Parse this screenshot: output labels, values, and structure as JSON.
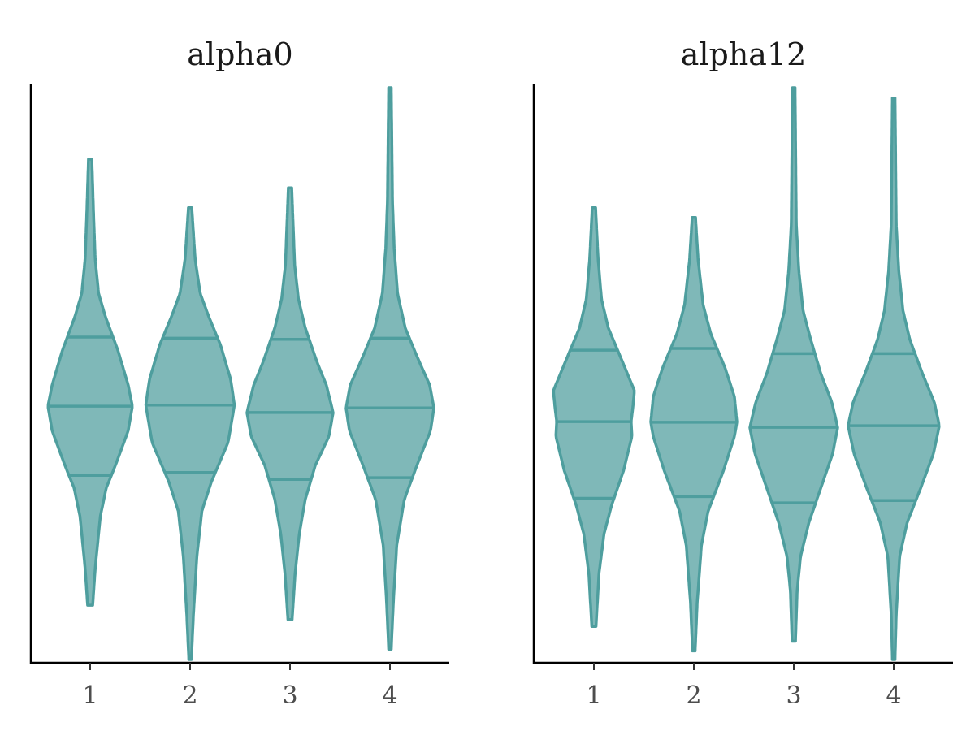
{
  "colors": {
    "fill": "#7fb8b8",
    "stroke": "#4e9e9e",
    "axis": "#000000"
  },
  "chart_data": [
    {
      "type": "violin",
      "title": "alpha0",
      "xlabel": "",
      "ylabel": "",
      "categories": [
        "1",
        "2",
        "3",
        "4"
      ],
      "ylim": [
        0,
        1
      ],
      "violins": [
        {
          "category": "1",
          "min": 0.095,
          "max": 0.875,
          "q25": 0.322,
          "median": 0.443,
          "q75": 0.564,
          "profile": [
            [
              0.095,
              0.006
            ],
            [
              0.16,
              0.012
            ],
            [
              0.25,
              0.024
            ],
            [
              0.3,
              0.038
            ],
            [
              0.34,
              0.06
            ],
            [
              0.4,
              0.09
            ],
            [
              0.443,
              0.1
            ],
            [
              0.48,
              0.09
            ],
            [
              0.54,
              0.066
            ],
            [
              0.6,
              0.036
            ],
            [
              0.64,
              0.02
            ],
            [
              0.7,
              0.012
            ],
            [
              0.78,
              0.008
            ],
            [
              0.875,
              0.004
            ]
          ]
        },
        {
          "category": "2",
          "min": 0.0,
          "max": 0.79,
          "q25": 0.327,
          "median": 0.445,
          "q75": 0.562,
          "profile": [
            [
              0.0,
              0.003
            ],
            [
              0.08,
              0.008
            ],
            [
              0.18,
              0.016
            ],
            [
              0.26,
              0.028
            ],
            [
              0.31,
              0.05
            ],
            [
              0.38,
              0.09
            ],
            [
              0.445,
              0.105
            ],
            [
              0.49,
              0.096
            ],
            [
              0.55,
              0.072
            ],
            [
              0.6,
              0.044
            ],
            [
              0.64,
              0.024
            ],
            [
              0.7,
              0.012
            ],
            [
              0.79,
              0.004
            ]
          ]
        },
        {
          "category": "3",
          "min": 0.07,
          "max": 0.825,
          "q25": 0.315,
          "median": 0.432,
          "q75": 0.56,
          "profile": [
            [
              0.07,
              0.005
            ],
            [
              0.15,
              0.012
            ],
            [
              0.22,
              0.022
            ],
            [
              0.28,
              0.036
            ],
            [
              0.34,
              0.06
            ],
            [
              0.39,
              0.092
            ],
            [
              0.432,
              0.102
            ],
            [
              0.48,
              0.086
            ],
            [
              0.52,
              0.064
            ],
            [
              0.58,
              0.036
            ],
            [
              0.63,
              0.02
            ],
            [
              0.69,
              0.011
            ],
            [
              0.825,
              0.004
            ]
          ]
        },
        {
          "category": "4",
          "min": 0.018,
          "max": 1.0,
          "q25": 0.318,
          "median": 0.44,
          "q75": 0.562,
          "profile": [
            [
              0.018,
              0.003
            ],
            [
              0.1,
              0.008
            ],
            [
              0.2,
              0.016
            ],
            [
              0.28,
              0.034
            ],
            [
              0.34,
              0.064
            ],
            [
              0.4,
              0.096
            ],
            [
              0.44,
              0.104
            ],
            [
              0.48,
              0.094
            ],
            [
              0.53,
              0.064
            ],
            [
              0.58,
              0.036
            ],
            [
              0.64,
              0.018
            ],
            [
              0.72,
              0.01
            ],
            [
              0.8,
              0.006
            ],
            [
              1.0,
              0.003
            ]
          ]
        }
      ]
    },
    {
      "type": "violin",
      "title": "alpha12",
      "xlabel": "",
      "ylabel": "",
      "categories": [
        "1",
        "2",
        "3",
        "4"
      ],
      "ylim": [
        0,
        1
      ],
      "violins": [
        {
          "category": "1",
          "min": 0.058,
          "max": 0.79,
          "q25": 0.282,
          "median": 0.416,
          "q75": 0.541,
          "profile": [
            [
              0.058,
              0.005
            ],
            [
              0.15,
              0.012
            ],
            [
              0.22,
              0.024
            ],
            [
              0.27,
              0.042
            ],
            [
              0.33,
              0.07
            ],
            [
              0.39,
              0.09
            ],
            [
              0.416,
              0.088
            ],
            [
              0.44,
              0.092
            ],
            [
              0.47,
              0.096
            ],
            [
              0.52,
              0.068
            ],
            [
              0.58,
              0.034
            ],
            [
              0.63,
              0.018
            ],
            [
              0.7,
              0.01
            ],
            [
              0.79,
              0.004
            ]
          ]
        },
        {
          "category": "2",
          "min": 0.015,
          "max": 0.773,
          "q25": 0.285,
          "median": 0.415,
          "q75": 0.544,
          "profile": [
            [
              0.015,
              0.003
            ],
            [
              0.1,
              0.008
            ],
            [
              0.2,
              0.018
            ],
            [
              0.26,
              0.034
            ],
            [
              0.33,
              0.07
            ],
            [
              0.39,
              0.096
            ],
            [
              0.415,
              0.102
            ],
            [
              0.46,
              0.096
            ],
            [
              0.51,
              0.074
            ],
            [
              0.57,
              0.04
            ],
            [
              0.62,
              0.022
            ],
            [
              0.7,
              0.01
            ],
            [
              0.773,
              0.004
            ]
          ]
        },
        {
          "category": "3",
          "min": 0.032,
          "max": 1.0,
          "q25": 0.274,
          "median": 0.406,
          "q75": 0.535,
          "profile": [
            [
              0.032,
              0.004
            ],
            [
              0.12,
              0.008
            ],
            [
              0.18,
              0.016
            ],
            [
              0.24,
              0.036
            ],
            [
              0.3,
              0.064
            ],
            [
              0.36,
              0.092
            ],
            [
              0.406,
              0.104
            ],
            [
              0.45,
              0.09
            ],
            [
              0.5,
              0.064
            ],
            [
              0.56,
              0.04
            ],
            [
              0.61,
              0.022
            ],
            [
              0.68,
              0.012
            ],
            [
              0.76,
              0.006
            ],
            [
              1.0,
              0.003
            ]
          ]
        },
        {
          "category": "4",
          "min": 0.0,
          "max": 0.982,
          "q25": 0.278,
          "median": 0.409,
          "q75": 0.535,
          "profile": [
            [
              0.0,
              0.003
            ],
            [
              0.08,
              0.006
            ],
            [
              0.18,
              0.014
            ],
            [
              0.24,
              0.032
            ],
            [
              0.3,
              0.064
            ],
            [
              0.36,
              0.094
            ],
            [
              0.409,
              0.108
            ],
            [
              0.45,
              0.096
            ],
            [
              0.5,
              0.068
            ],
            [
              0.56,
              0.038
            ],
            [
              0.61,
              0.022
            ],
            [
              0.68,
              0.012
            ],
            [
              0.76,
              0.006
            ],
            [
              0.982,
              0.003
            ]
          ]
        }
      ]
    }
  ]
}
